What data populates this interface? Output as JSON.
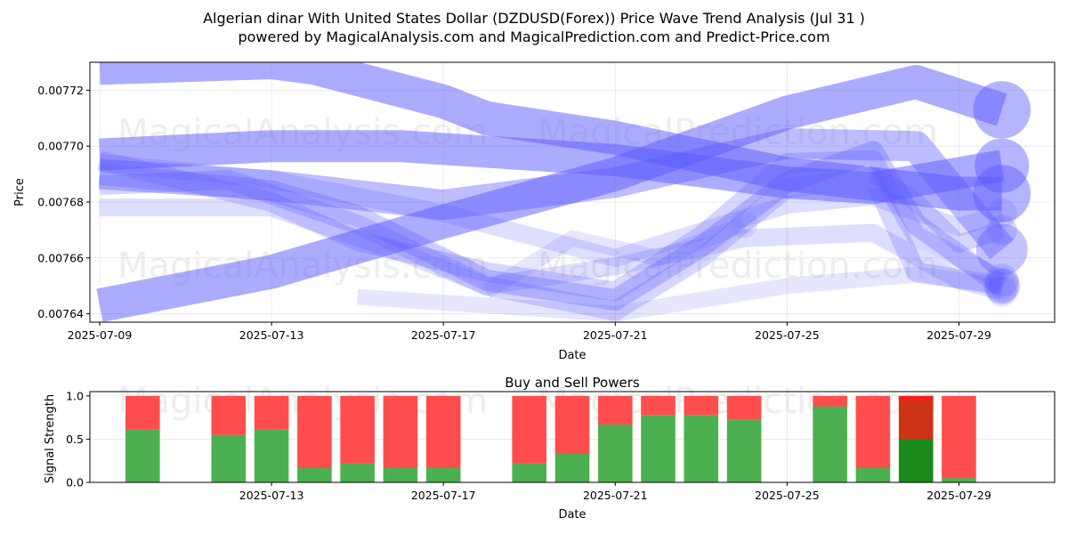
{
  "title_line1": "Algerian dinar With United States Dollar (DZDUSD(Forex)) Price Wave Trend Analysis (Jul 31 )",
  "title_line2": "powered by MagicalAnalysis.com and MagicalPrediction.com and Predict-Price.com",
  "watermarks": [
    "MagicalAnalysis.com",
    "MagicalPrediction.com"
  ],
  "colors": {
    "wave": "#5a5aff",
    "buy": "#4caf50",
    "sell": "#ff4d4d",
    "buy_dark": "#1a8a1a",
    "sell_dark": "#cc3317"
  },
  "chart_data": [
    {
      "type": "line",
      "xlabel": "Date",
      "ylabel": "Price",
      "x_ticks": [
        "2025-07-09",
        "2025-07-13",
        "2025-07-17",
        "2025-07-21",
        "2025-07-25",
        "2025-07-29"
      ],
      "y_ticks": [
        "0.00764",
        "0.00766",
        "0.00768",
        "0.00770",
        "0.00772"
      ],
      "xlim": [
        "2025-07-09",
        "2025-07-31"
      ],
      "ylim": [
        0.007637,
        0.00773
      ],
      "series": [
        {
          "x": [
            "2025-07-09",
            "2025-07-13",
            "2025-07-14",
            "2025-07-17",
            "2025-07-18",
            "2025-07-21",
            "2025-07-25",
            "2025-07-29",
            "2025-07-30"
          ],
          "values": [
            0.007728,
            0.00773,
            0.007728,
            0.007716,
            0.00771,
            0.007703,
            0.00769,
            0.007683,
            0.007683
          ],
          "opacity": 0.5,
          "width": 38
        },
        {
          "x": [
            "2025-07-09",
            "2025-07-13",
            "2025-07-17",
            "2025-07-21",
            "2025-07-25",
            "2025-07-28",
            "2025-07-30"
          ],
          "values": [
            0.007643,
            0.007655,
            0.007673,
            0.00769,
            0.007712,
            0.007723,
            0.007713
          ],
          "opacity": 0.5,
          "width": 38
        },
        {
          "x": [
            "2025-07-09",
            "2025-07-13",
            "2025-07-16",
            "2025-07-21",
            "2025-07-25",
            "2025-07-27",
            "2025-07-30"
          ],
          "values": [
            0.007697,
            0.0077,
            0.0077,
            0.007695,
            0.007687,
            0.007685,
            0.007693
          ],
          "opacity": 0.5,
          "width": 36
        },
        {
          "x": [
            "2025-07-09",
            "2025-07-13",
            "2025-07-17",
            "2025-07-21",
            "2025-07-25",
            "2025-07-28",
            "2025-07-30"
          ],
          "values": [
            0.00769,
            0.007686,
            0.007679,
            0.007687,
            0.007701,
            0.0077,
            0.007663
          ],
          "opacity": 0.4,
          "width": 34
        },
        {
          "x": [
            "2025-07-09",
            "2025-07-13",
            "2025-07-15",
            "2025-07-18",
            "2025-07-21",
            "2025-07-23",
            "2025-07-25",
            "2025-07-27",
            "2025-07-28",
            "2025-07-30"
          ],
          "values": [
            0.00769,
            0.007684,
            0.007675,
            0.007652,
            0.007645,
            0.007664,
            0.007687,
            0.007698,
            0.007672,
            0.00765
          ],
          "opacity": 0.3,
          "width": 24
        },
        {
          "x": [
            "2025-07-09",
            "2025-07-13",
            "2025-07-15",
            "2025-07-18",
            "2025-07-21",
            "2025-07-23",
            "2025-07-25",
            "2025-07-27",
            "2025-07-28",
            "2025-07-30"
          ],
          "values": [
            0.007695,
            0.00768,
            0.007666,
            0.007655,
            0.007648,
            0.007668,
            0.007694,
            0.007695,
            0.007668,
            0.007652
          ],
          "opacity": 0.25,
          "width": 22
        },
        {
          "x": [
            "2025-07-09",
            "2025-07-12",
            "2025-07-15",
            "2025-07-18",
            "2025-07-21",
            "2025-07-23",
            "2025-07-25",
            "2025-07-27",
            "2025-07-28",
            "2025-07-30"
          ],
          "values": [
            0.007686,
            0.007688,
            0.007672,
            0.00765,
            0.007641,
            0.00766,
            0.007685,
            0.007689,
            0.007655,
            0.00765
          ],
          "opacity": 0.25,
          "width": 22
        },
        {
          "x": [
            "2025-07-09",
            "2025-07-13",
            "2025-07-16",
            "2025-07-18",
            "2025-07-21",
            "2025-07-24",
            "2025-07-27",
            "2025-07-29",
            "2025-07-30"
          ],
          "values": [
            0.007678,
            0.007678,
            0.007662,
            0.00765,
            0.007657,
            0.007667,
            0.007669,
            0.007652,
            0.007648
          ],
          "opacity": 0.2,
          "width": 20
        },
        {
          "x": [
            "2025-07-09",
            "2025-07-13",
            "2025-07-17",
            "2025-07-21",
            "2025-07-25",
            "2025-07-27",
            "2025-07-29",
            "2025-07-30"
          ],
          "values": [
            0.007694,
            0.007688,
            0.007676,
            0.00766,
            0.007679,
            0.007682,
            0.007671,
            0.007676
          ],
          "opacity": 0.2,
          "width": 20
        },
        {
          "x": [
            "2025-07-15",
            "2025-07-18",
            "2025-07-21",
            "2025-07-25",
            "2025-07-28",
            "2025-07-30"
          ],
          "values": [
            0.007646,
            0.007643,
            0.00764,
            0.00765,
            0.007654,
            0.00765
          ],
          "opacity": 0.15,
          "width": 18
        },
        {
          "x": [
            "2025-07-18",
            "2025-07-20",
            "2025-07-22",
            "2025-07-24"
          ],
          "values": [
            0.007648,
            0.007667,
            0.00766,
            0.007672
          ],
          "opacity": 0.15,
          "width": 18
        },
        {
          "x": [
            "2025-07-27",
            "2025-07-28",
            "2025-07-29",
            "2025-07-30"
          ],
          "values": [
            0.00769,
            0.00768,
            0.007665,
            0.00767
          ],
          "opacity": 0.25,
          "width": 20
        }
      ]
    },
    {
      "type": "bar",
      "title": "Buy and Sell Powers",
      "xlabel": "Date",
      "ylabel": "Signal Strength",
      "x_ticks": [
        "2025-07-13",
        "2025-07-17",
        "2025-07-21",
        "2025-07-25",
        "2025-07-29"
      ],
      "y_ticks": [
        "0.0",
        "0.5",
        "1.0"
      ],
      "xlim": [
        "2025-07-09",
        "2025-07-31"
      ],
      "ylim": [
        0,
        1.05
      ],
      "dates": [
        "2025-07-10",
        "2025-07-12",
        "2025-07-13",
        "2025-07-14",
        "2025-07-15",
        "2025-07-16",
        "2025-07-17",
        "2025-07-19",
        "2025-07-20",
        "2025-07-21",
        "2025-07-22",
        "2025-07-23",
        "2025-07-24",
        "2025-07-26",
        "2025-07-27",
        "2025-07-28",
        "2025-07-29"
      ],
      "buy": [
        0.61,
        0.55,
        0.61,
        0.17,
        0.22,
        0.17,
        0.17,
        0.22,
        0.33,
        0.67,
        0.78,
        0.78,
        0.73,
        0.88,
        0.17,
        0.5,
        0.05
      ],
      "sell": [
        0.39,
        0.45,
        0.39,
        0.83,
        0.78,
        0.83,
        0.83,
        0.78,
        0.67,
        0.33,
        0.22,
        0.22,
        0.27,
        0.12,
        0.83,
        0.5,
        0.95
      ],
      "highlight_index": 15
    }
  ]
}
